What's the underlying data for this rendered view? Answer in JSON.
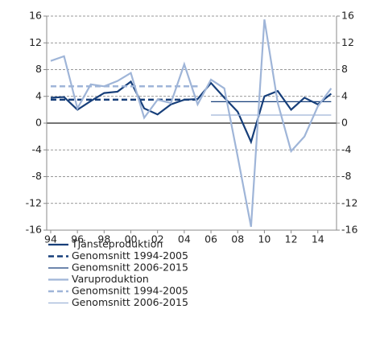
{
  "chart_data": {
    "type": "line",
    "x": [
      1994,
      1995,
      1996,
      1997,
      1998,
      1999,
      2000,
      2001,
      2002,
      2003,
      2004,
      2005,
      2006,
      2007,
      2008,
      2009,
      2010,
      2011,
      2012,
      2013,
      2014,
      2015
    ],
    "xlim": [
      1993.7,
      2015.4
    ],
    "xticks": [
      {
        "value": 1994,
        "label": "94"
      },
      {
        "value": 1996,
        "label": "96"
      },
      {
        "value": 1998,
        "label": "98"
      },
      {
        "value": 2000,
        "label": "00"
      },
      {
        "value": 2002,
        "label": "02"
      },
      {
        "value": 2004,
        "label": "04"
      },
      {
        "value": 2006,
        "label": "06"
      },
      {
        "value": 2008,
        "label": "08"
      },
      {
        "value": 2010,
        "label": "10"
      },
      {
        "value": 2012,
        "label": "12"
      },
      {
        "value": 2014,
        "label": "14"
      }
    ],
    "ylim": [
      -16,
      16
    ],
    "yticks": [
      -16,
      -12,
      -8,
      -4,
      0,
      4,
      8,
      12,
      16
    ],
    "y2lim": [
      -16,
      16
    ],
    "y2ticks": [
      -16,
      -12,
      -8,
      -4,
      0,
      4,
      8,
      12,
      16
    ],
    "grid": true,
    "legend": "bottom",
    "series": [
      {
        "name": "Tjänsteproduktion",
        "color": "#173f7a",
        "dash": false,
        "width": 2.2,
        "values": [
          3.8,
          3.9,
          2.0,
          3.3,
          4.5,
          4.7,
          6.2,
          2.2,
          1.3,
          2.8,
          3.5,
          3.6,
          6.0,
          3.8,
          1.7,
          -2.8,
          4.0,
          4.8,
          2.0,
          3.8,
          2.8,
          4.4
        ]
      },
      {
        "name": "Genomsnitt 1994-2005",
        "color": "#173f7a",
        "dash": true,
        "width": 2.5,
        "values": [
          3.5,
          3.5,
          3.5,
          3.5,
          3.5,
          3.5,
          3.5,
          3.5,
          3.5,
          3.5,
          3.5,
          3.5,
          null,
          null,
          null,
          null,
          null,
          null,
          null,
          null,
          null,
          null
        ]
      },
      {
        "name": "Genomsnitt 2006-2015",
        "color": "#173f7a",
        "dash": false,
        "width": 1.3,
        "values": [
          null,
          null,
          null,
          null,
          null,
          null,
          null,
          null,
          null,
          null,
          null,
          null,
          3.2,
          3.2,
          3.2,
          3.2,
          3.2,
          3.2,
          3.2,
          3.2,
          3.2,
          3.2
        ]
      },
      {
        "name": "Varuproduktion",
        "color": "#9fb5d8",
        "dash": false,
        "width": 2.2,
        "values": [
          9.3,
          10.0,
          2.2,
          5.8,
          5.5,
          6.3,
          7.5,
          0.8,
          3.5,
          3.0,
          8.8,
          2.8,
          6.5,
          5.2,
          -5.0,
          -15.5,
          15.5,
          3.0,
          -4.2,
          -2.0,
          2.5,
          5.2
        ]
      },
      {
        "name": "Genomsnitt 1994-2005",
        "color": "#9fb5d8",
        "dash": true,
        "width": 2.5,
        "values": [
          5.5,
          5.5,
          5.5,
          5.5,
          5.5,
          5.5,
          5.5,
          5.5,
          5.5,
          5.5,
          5.5,
          5.5,
          null,
          null,
          null,
          null,
          null,
          null,
          null,
          null,
          null,
          null
        ]
      },
      {
        "name": "Genomsnitt 2006-2015",
        "color": "#9fb5d8",
        "dash": false,
        "width": 1.3,
        "values": [
          null,
          null,
          null,
          null,
          null,
          null,
          null,
          null,
          null,
          null,
          null,
          null,
          1.2,
          1.2,
          1.2,
          1.2,
          1.2,
          1.2,
          1.2,
          1.2,
          1.2,
          1.2
        ]
      }
    ]
  }
}
